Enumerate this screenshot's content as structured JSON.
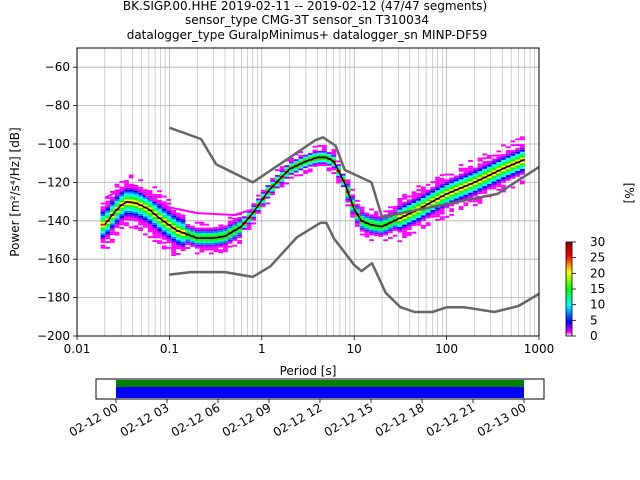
{
  "title": {
    "line1": "BK.SIGP.00.HHE   2019-02-11 -- 2019-02-12  (47/47 segments)",
    "line2": "sensor_type CMG-3T sensor_sn T310034",
    "line3": "datalogger_type GuralpMinimus+ datalogger_sn MINP-DF59"
  },
  "chart_data": [
    {
      "type": "heatmap",
      "xlabel": "Period [s]",
      "ylabel": "Power [m²/s⁴/Hz] [dB]",
      "xscale": "log",
      "xlim": [
        0.01,
        1000
      ],
      "ylim": [
        -200,
        -50
      ],
      "x_ticks": [
        "0.01",
        "0.1",
        "1",
        "10",
        "100",
        "1000"
      ],
      "y_ticks": [
        "-200",
        "-180",
        "-160",
        "-140",
        "-120",
        "-100",
        "-80",
        "-60"
      ],
      "grid": true,
      "colorbar": {
        "label": "[%]",
        "ticks": [
          "0",
          "5",
          "10",
          "15",
          "20",
          "25",
          "30"
        ],
        "range": [
          0,
          30
        ]
      },
      "model_high": {
        "x": [
          0.1,
          0.22,
          0.32,
          0.8,
          3.8,
          4.6,
          6.3,
          7.9,
          15.4,
          20,
          354.8,
          1000
        ],
        "y": [
          -91.5,
          -97.4,
          -110.5,
          -120,
          -98,
          -96.5,
          -101,
          -113.5,
          -120,
          -138,
          -126,
          -112
        ]
      },
      "model_low": {
        "x": [
          0.1,
          0.17,
          0.4,
          0.8,
          1.24,
          2.4,
          4.3,
          5,
          6,
          10,
          12,
          15.6,
          21.9,
          31.6,
          45,
          70,
          101,
          154,
          328,
          600,
          1000
        ],
        "y": [
          -168,
          -166.7,
          -166.7,
          -169.2,
          -163.7,
          -148.6,
          -141.1,
          -141.1,
          -149,
          -163,
          -166.2,
          -162.1,
          -177.5,
          -185,
          -187.5,
          -187.5,
          -185,
          -185,
          -187.5,
          -184.4,
          -178
        ]
      },
      "mode": {
        "x": [
          0.02,
          0.025,
          0.03,
          0.035,
          0.045,
          0.06,
          0.08,
          0.12,
          0.2,
          0.3,
          0.4,
          0.6,
          0.8,
          1.2,
          2,
          3,
          4,
          5,
          6,
          8,
          10,
          12,
          15,
          20,
          30,
          50,
          70,
          100,
          200,
          400,
          700
        ],
        "y": [
          -142,
          -136,
          -132,
          -130,
          -131,
          -134,
          -139,
          -145,
          -149,
          -149,
          -148,
          -143,
          -136,
          -124,
          -113,
          -109,
          -107,
          -107,
          -109,
          -121,
          -134,
          -140,
          -142,
          -143,
          -139,
          -134,
          -130,
          -126,
          -120,
          -113,
          -108
        ]
      }
    },
    {
      "type": "bar",
      "x_ticks": [
        "02-12 00",
        "02-12 03",
        "02-12 06",
        "02-12 09",
        "02-12 12",
        "02-12 15",
        "02-12 18",
        "02-12 21",
        "02-13 00"
      ],
      "coverage_start": "02-12 00",
      "coverage_end": "02-13 00"
    }
  ],
  "colors": {
    "model_lines": "#666666",
    "mode_line": "#000000",
    "coverage_top": "#008000",
    "coverage_bottom": "#0000ff"
  }
}
